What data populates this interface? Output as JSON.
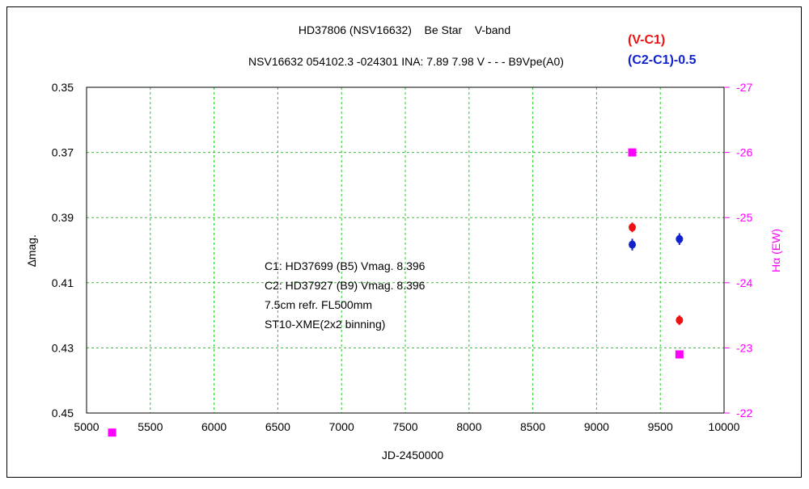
{
  "chart_data": {
    "type": "scatter",
    "title": "HD37806 (NSV16632)    Be Star    V-band",
    "subtitle": "NSV16632 054102.3 -024301 INA: 7.89 7.98 V - - - B9Vpe(A0)",
    "xlabel": "JD-2450000",
    "ylabel": "∆mag.",
    "y2label": "Hα (EW)",
    "xlim": [
      5000,
      10000
    ],
    "ylim": [
      0.35,
      0.45
    ],
    "y_inverted": true,
    "y2lim": [
      -27,
      -22
    ],
    "x_ticks": [
      "5000",
      "5500",
      "6000",
      "6500",
      "7000",
      "7500",
      "8000",
      "8500",
      "9000",
      "9500",
      "10000"
    ],
    "y_ticks": [
      "0.35",
      "0.37",
      "0.39",
      "0.41",
      "0.43",
      "0.45"
    ],
    "y2_ticks": [
      "-27",
      "-26",
      "-25",
      "-24",
      "-23",
      "-22"
    ],
    "grid": true,
    "legend_position": "top-right",
    "annotation_lines": [
      "C1: HD37699 (B5) Vmag. 8.396",
      "C2: HD37927 (B9) Vmag. 8.396",
      "7.5cm refr. FL500mm",
      "ST10-XME(2x2 binning)"
    ],
    "series": [
      {
        "name": "(V-C1)",
        "color": "#ee1111",
        "axis": "left",
        "marker": "circle",
        "points": [
          {
            "x": 9280,
            "y": 0.393,
            "err": 0.0015
          },
          {
            "x": 9650,
            "y": 0.4215,
            "err": 0.0015
          }
        ]
      },
      {
        "name": "(C2-C1)-0.5",
        "color": "#1122cc",
        "axis": "left",
        "marker": "circle",
        "points": [
          {
            "x": 9280,
            "y": 0.3983,
            "err": 0.0018
          },
          {
            "x": 9650,
            "y": 0.3966,
            "err": 0.0018
          }
        ]
      },
      {
        "name": "",
        "color": "#ff00ff",
        "axis": "right",
        "marker": "square",
        "points": [
          {
            "x": 5200,
            "y": -21.7
          },
          {
            "x": 9280,
            "y": -26.0
          },
          {
            "x": 9650,
            "y": -22.9
          }
        ]
      }
    ]
  }
}
